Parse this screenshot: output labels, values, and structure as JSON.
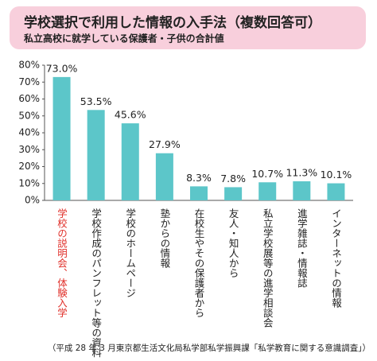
{
  "chart_data": {
    "type": "bar",
    "title": "学校選択で利用した情報の入手法（複数回答可）",
    "subtitle": "私立高校に就学している保護者・子供の合計値",
    "source": "（平成 28 年 3 月東京都生活文化局私学部私学振興課「私学教育に関する意識調査」）",
    "categories": [
      "学校の説明会、体験入学",
      "学校作成のパンフレット等の資料",
      "学校のホームページ",
      "塾からの情報",
      "在校生やその保護者から",
      "友人・知人から",
      "私立学校展等の進学相談会",
      "進学雑誌・情報誌",
      "インターネットの情報"
    ],
    "category_label_colors": [
      "#e0302a",
      "#222222",
      "#222222",
      "#222222",
      "#222222",
      "#222222",
      "#222222",
      "#222222",
      "#222222"
    ],
    "values": [
      73.0,
      53.5,
      45.6,
      27.9,
      8.3,
      7.8,
      10.7,
      11.3,
      10.1
    ],
    "value_labels": [
      "73.0%",
      "53.5%",
      "45.6%",
      "27.9%",
      "8.3%",
      "7.8%",
      "10.7%",
      "11.3%",
      "10.1%"
    ],
    "color": "#5cc6c9",
    "ylim": [
      0,
      80
    ],
    "yticks": [
      {
        "value": 0,
        "label": "0%"
      },
      {
        "value": 10,
        "label": "10%"
      },
      {
        "value": 20,
        "label": "20%"
      },
      {
        "value": 30,
        "label": "30%"
      },
      {
        "value": 40,
        "label": "40%"
      },
      {
        "value": 50,
        "label": "50%"
      },
      {
        "value": 60,
        "label": "60%"
      },
      {
        "value": 70,
        "label": "70%"
      },
      {
        "value": 80,
        "label": "80%"
      }
    ],
    "title_box_color": "#f8cfdc"
  }
}
